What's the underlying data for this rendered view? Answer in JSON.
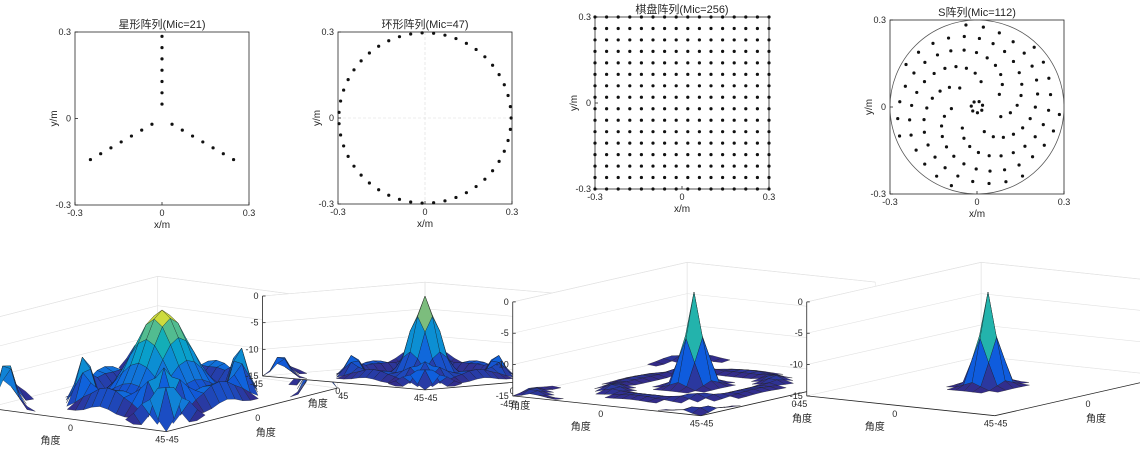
{
  "chart_data": [
    {
      "type": "scatter",
      "title": "星形阵列(Mic=21)",
      "xlabel": "x/m",
      "ylabel": "y/m",
      "xlim": [
        -0.3,
        0.3
      ],
      "ylim": [
        -0.3,
        0.3
      ],
      "xticks": [
        "-0.3",
        "0",
        "0.3"
      ],
      "yticks": [
        "-0.3",
        "0",
        "0.3"
      ],
      "grid": false,
      "layout": "star",
      "mic_count": 21
    },
    {
      "type": "scatter",
      "title": "环形阵列(Mic=47)",
      "xlabel": "x/m",
      "ylabel": "y/m",
      "xlim": [
        -0.3,
        0.3
      ],
      "ylim": [
        -0.3,
        0.3
      ],
      "xticks": [
        "-0.3",
        "0",
        "0.3"
      ],
      "yticks": [
        "-0.3",
        "0",
        "0.3"
      ],
      "grid": true,
      "layout": "ring",
      "mic_count": 47
    },
    {
      "type": "scatter",
      "title": "棋盘阵列(Mic=256)",
      "xlabel": "x/m",
      "ylabel": "y/m",
      "xlim": [
        -0.3,
        0.3
      ],
      "ylim": [
        -0.3,
        0.3
      ],
      "xticks": [
        "-0.3",
        "0",
        "0.3"
      ],
      "yticks": [
        "-0.3",
        "0",
        "0.3"
      ],
      "grid": false,
      "layout": "grid",
      "mic_count": 256
    },
    {
      "type": "scatter",
      "title": "S阵列(Mic=112)",
      "xlabel": "x/m",
      "ylabel": "y/m",
      "xlim": [
        -0.3,
        0.3
      ],
      "ylim": [
        -0.3,
        0.3
      ],
      "xticks": [
        "-0.3",
        "0",
        "0.3"
      ],
      "yticks": [
        "-0.3",
        "0",
        "0.3"
      ],
      "grid": false,
      "layout": "spiral",
      "mic_count": 112
    },
    {
      "type": "surface",
      "xlabel": "角度",
      "ylabel": "角度",
      "xticks": [
        "-45",
        "0",
        "45"
      ],
      "yticks": [
        "-45",
        "0",
        "45"
      ],
      "zticks": [
        "0",
        "-5",
        "-10",
        "-15"
      ],
      "zlim": [
        -15,
        0
      ],
      "main_lobe_width": 0.22,
      "sidelobe_level": -7,
      "colormap": "parula"
    },
    {
      "type": "surface",
      "xlabel": "角度",
      "ylabel": "角度",
      "xticks": [
        "-45",
        "0",
        "45"
      ],
      "yticks": [
        "-45",
        "0",
        "45"
      ],
      "zticks": [
        "0",
        "-5",
        "-10",
        "-15"
      ],
      "zlim": [
        -15,
        0
      ],
      "main_lobe_width": 0.12,
      "sidelobe_level": -11,
      "colormap": "parula"
    },
    {
      "type": "surface",
      "xlabel": "角度",
      "ylabel": "角度",
      "xticks": [
        "-45",
        "0",
        "45"
      ],
      "yticks": [
        "-45",
        "0",
        "45"
      ],
      "zticks": [
        "0",
        "-5",
        "-10",
        "-15"
      ],
      "zlim": [
        -15,
        0
      ],
      "main_lobe_width": 0.08,
      "sidelobe_level": -14,
      "colormap": "parula"
    },
    {
      "type": "surface",
      "xlabel": "角度",
      "ylabel": "角度",
      "xticks": [
        "-45",
        "0",
        "45"
      ],
      "yticks": [
        "-45",
        "0",
        "45"
      ],
      "zticks": [
        "0",
        "-5",
        "-10",
        "-15"
      ],
      "zlim": [
        -15,
        0
      ],
      "main_lobe_width": 0.08,
      "sidelobe_level": -15,
      "colormap": "parula"
    }
  ]
}
